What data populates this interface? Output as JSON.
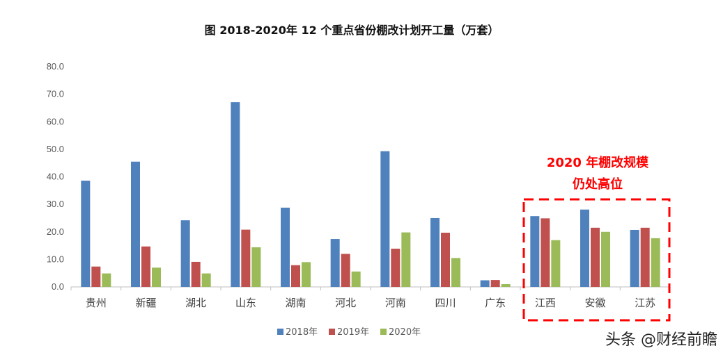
{
  "chart_data": {
    "type": "bar",
    "title": "图  2018-2020年 12 个重点省份棚改计划开工量（万套）",
    "categories": [
      "贵州",
      "新疆",
      "湖北",
      "山东",
      "湖南",
      "河北",
      "河南",
      "四川",
      "广东",
      "江西",
      "安徽",
      "江苏"
    ],
    "series": [
      {
        "name": "2018年",
        "color": "#4f81bd",
        "values": [
          38.6,
          45.5,
          24.2,
          67.1,
          28.8,
          17.4,
          49.3,
          25.0,
          2.4,
          25.7,
          28.1,
          20.7
        ]
      },
      {
        "name": "2019年",
        "color": "#c0504d",
        "values": [
          7.4,
          14.7,
          9.1,
          20.8,
          7.9,
          12.0,
          13.9,
          19.7,
          2.5,
          24.9,
          21.5,
          21.5
        ]
      },
      {
        "name": "2020年",
        "color": "#9bbb59",
        "values": [
          4.9,
          7.0,
          4.9,
          14.4,
          9.0,
          5.6,
          19.8,
          10.5,
          1.0,
          17.0,
          20.0,
          17.7
        ]
      }
    ],
    "yticks": [
      "0.0",
      "10.0",
      "20.0",
      "30.0",
      "40.0",
      "50.0",
      "60.0",
      "70.0",
      "80.0"
    ],
    "ylim": [
      0,
      80
    ],
    "grid": false,
    "legend_position": "bottom",
    "annotation": {
      "lines": [
        "2020 年棚改规模",
        "仍处高位"
      ],
      "color": "#ff0000",
      "highlight_categories": [
        "江西",
        "安徽",
        "江苏"
      ]
    }
  },
  "watermark": "头条 @财经前瞻"
}
